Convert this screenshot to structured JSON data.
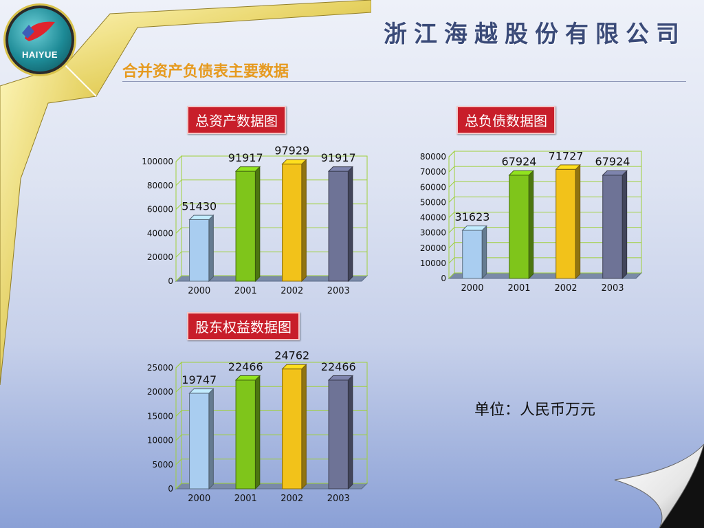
{
  "header": {
    "logo_text": "HAIYUE",
    "company_name": "浙江海越股份有限公司",
    "subtitle": "合并资产负债表主要数据"
  },
  "unit_label": "单位：人民币万元",
  "colors": {
    "accent": "#c81e2a",
    "subtitle": "#e69a1f",
    "bar_2000": "#a9cdf0",
    "bar_2001": "#7fc51b",
    "bar_2002": "#f2c21a",
    "bar_2003": "#6e7396"
  },
  "chart_data": [
    {
      "type": "bar",
      "title": "总资产数据图",
      "categories": [
        "2000",
        "2001",
        "2002",
        "2003"
      ],
      "values": [
        51430,
        91917,
        97929,
        91917
      ],
      "data_labels": [
        "51430",
        "91917",
        "97929",
        "91917"
      ],
      "ylim": [
        0,
        100000
      ],
      "yticks": [
        0,
        20000,
        40000,
        60000,
        80000,
        100000
      ],
      "grid": true
    },
    {
      "type": "bar",
      "title": "总负债数据图",
      "categories": [
        "2000",
        "2001",
        "2002",
        "2003"
      ],
      "values": [
        31623,
        67924,
        71727,
        67924
      ],
      "data_labels": [
        "31623",
        "67924",
        "71727",
        "67924"
      ],
      "ylim": [
        0,
        80000
      ],
      "yticks": [
        0,
        10000,
        20000,
        30000,
        40000,
        50000,
        60000,
        70000,
        80000
      ],
      "grid": true
    },
    {
      "type": "bar",
      "title": "股东权益数据图",
      "categories": [
        "2000",
        "2001",
        "2002",
        "2003"
      ],
      "values": [
        19747,
        22466,
        24762,
        22466
      ],
      "data_labels": [
        "19747",
        "22466",
        "24762",
        "22466"
      ],
      "ylim": [
        0,
        25000
      ],
      "yticks": [
        0,
        5000,
        10000,
        15000,
        20000,
        25000
      ],
      "grid": true
    }
  ]
}
